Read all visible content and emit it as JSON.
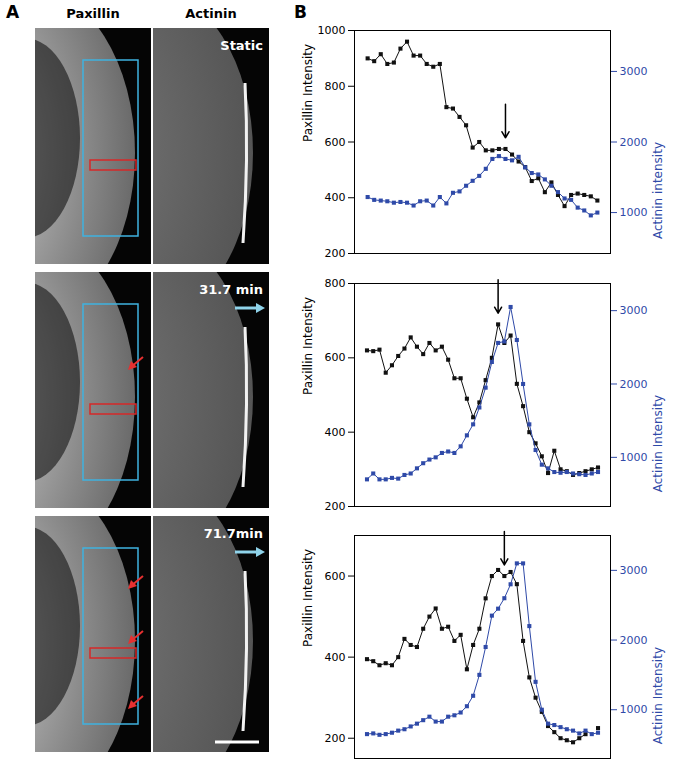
{
  "panel_labels": [
    "A",
    "B"
  ],
  "panel_a": {
    "columns": [
      "Paxillin",
      "Actinin"
    ],
    "rows": [
      "Static",
      "31.7 min",
      "71.7min"
    ]
  },
  "chart_data": [
    {
      "type": "line",
      "ylabel": "Paxillin Intensity",
      "y2label": "Actinin intensity",
      "marker": "square",
      "x": [
        0,
        1,
        2,
        3,
        4,
        5,
        6,
        7,
        8,
        9,
        10,
        11,
        12,
        13,
        14,
        15,
        16,
        17,
        18,
        19,
        20,
        21,
        22,
        23,
        24,
        25,
        26,
        27,
        28,
        29,
        30,
        31,
        32,
        33,
        34,
        35
      ],
      "xlim": [
        -2,
        37
      ],
      "ylim": [
        200,
        1000
      ],
      "yticks": [
        200,
        400,
        600,
        800,
        1000
      ],
      "y2lim": [
        420,
        3580
      ],
      "y2ticks": [
        1000,
        2000,
        3000
      ],
      "arrow_x": 21,
      "series": [
        {
          "name": "Paxillin",
          "color": "#111111",
          "values": [
            900,
            890,
            915,
            880,
            885,
            935,
            960,
            910,
            910,
            880,
            870,
            880,
            725,
            720,
            690,
            660,
            580,
            600,
            570,
            570,
            575,
            575,
            555,
            530,
            510,
            460,
            470,
            420,
            455,
            410,
            370,
            410,
            415,
            410,
            405,
            390
          ]
        },
        {
          "name": "Actinin",
          "color": "#2f4aa8",
          "axis": "y2",
          "values": [
            1220,
            1180,
            1170,
            1160,
            1140,
            1150,
            1140,
            1100,
            1160,
            1170,
            1100,
            1220,
            1130,
            1280,
            1300,
            1380,
            1450,
            1520,
            1620,
            1760,
            1800,
            1760,
            1740,
            1790,
            1640,
            1560,
            1540,
            1470,
            1380,
            1290,
            1200,
            1180,
            1070,
            1030,
            960,
            1000
          ]
        }
      ]
    },
    {
      "type": "line",
      "ylabel": "Paxillin Intensity",
      "y2label": "Actinin Intensity",
      "marker": "square",
      "x": [
        0,
        1,
        2,
        3,
        4,
        5,
        6,
        7,
        8,
        9,
        10,
        11,
        12,
        13,
        14,
        15,
        16,
        17,
        18,
        19,
        20,
        21,
        22,
        23,
        24,
        25,
        26,
        27,
        28,
        29,
        30,
        31,
        32,
        33,
        34,
        35,
        36,
        37
      ],
      "xlim": [
        -2,
        39
      ],
      "ylim": [
        200,
        800
      ],
      "yticks": [
        200,
        400,
        600,
        800
      ],
      "y2lim": [
        330,
        3370
      ],
      "y2ticks": [
        1000,
        2000,
        3000
      ],
      "arrow_x": 21,
      "series": [
        {
          "name": "Paxillin",
          "color": "#111111",
          "values": [
            620,
            618,
            622,
            560,
            580,
            605,
            625,
            655,
            630,
            610,
            640,
            620,
            630,
            595,
            545,
            545,
            490,
            440,
            480,
            540,
            600,
            690,
            640,
            660,
            530,
            470,
            400,
            370,
            335,
            290,
            350,
            300,
            295,
            285,
            290,
            295,
            300,
            305
          ]
        },
        {
          "name": "Actinin",
          "color": "#2f4aa8",
          "axis": "y2",
          "values": [
            700,
            780,
            700,
            700,
            720,
            710,
            760,
            780,
            850,
            920,
            970,
            1000,
            1060,
            1080,
            1060,
            1150,
            1300,
            1450,
            1680,
            1950,
            2300,
            2560,
            2580,
            3050,
            2600,
            2000,
            1450,
            1100,
            900,
            850,
            800,
            790,
            800,
            780,
            770,
            760,
            780,
            800
          ]
        }
      ]
    },
    {
      "type": "line",
      "ylabel": "Paxillin Intensity",
      "y2label": "Actinin Intensity",
      "marker": "square",
      "x": [
        0,
        1,
        2,
        3,
        4,
        5,
        6,
        7,
        8,
        9,
        10,
        11,
        12,
        13,
        14,
        15,
        16,
        17,
        18,
        19,
        20,
        21,
        22,
        23,
        24,
        25,
        26,
        27,
        28,
        29,
        30,
        31,
        32,
        33,
        34,
        35,
        36,
        37
      ],
      "xlim": [
        -2,
        39
      ],
      "ylim": [
        150,
        700
      ],
      "yticks": [
        200,
        400,
        600
      ],
      "y2lim": [
        300,
        3500
      ],
      "y2ticks": [
        1000,
        2000,
        3000
      ],
      "arrow_x": 22,
      "series": [
        {
          "name": "Paxillin",
          "color": "#111111",
          "values": [
            395,
            390,
            380,
            385,
            380,
            400,
            445,
            430,
            425,
            470,
            500,
            520,
            470,
            475,
            440,
            455,
            370,
            430,
            470,
            545,
            600,
            615,
            600,
            610,
            580,
            440,
            350,
            300,
            265,
            230,
            215,
            200,
            195,
            190,
            200,
            210,
            null,
            225
          ]
        },
        {
          "name": "Actinin",
          "color": "#2f4aa8",
          "axis": "y2",
          "values": [
            650,
            660,
            640,
            650,
            670,
            700,
            720,
            760,
            800,
            850,
            900,
            830,
            830,
            900,
            920,
            960,
            1050,
            1200,
            1500,
            1900,
            2350,
            2450,
            2600,
            2800,
            3100,
            3100,
            2200,
            1400,
            1000,
            800,
            780,
            750,
            720,
            700,
            660,
            700,
            650,
            670
          ]
        }
      ]
    }
  ]
}
